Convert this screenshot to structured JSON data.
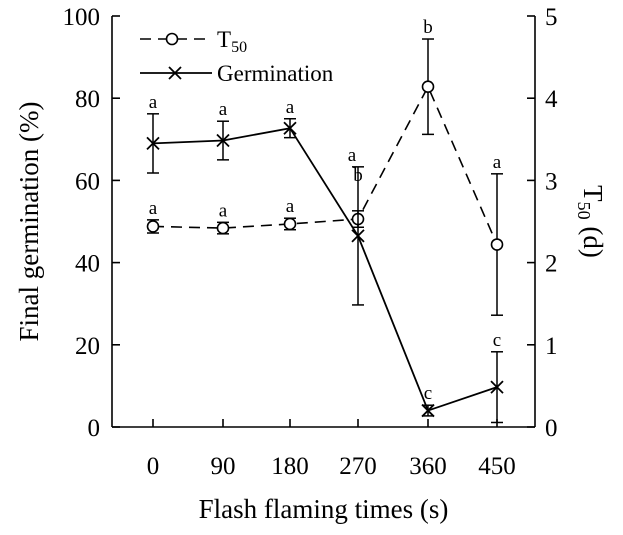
{
  "chart_data": {
    "type": "line",
    "xlabel": "Flash flaming times (s)",
    "ylabel_left": "Final germination (%)",
    "ylabel_right_main": "T",
    "ylabel_right_sub": "50",
    "ylabel_right_unit": " (d)",
    "x": [
      "0",
      "90",
      "180",
      "270",
      "360",
      "450"
    ],
    "ylim_left": [
      0,
      100
    ],
    "ylim_right": [
      0,
      5
    ],
    "yticks_left": [
      "0",
      "20",
      "40",
      "60",
      "80",
      "100"
    ],
    "yticks_right": [
      "0",
      "1",
      "2",
      "3",
      "4",
      "5"
    ],
    "grid": false,
    "legend_position": "top-left",
    "series": [
      {
        "name_main": "T",
        "name_sub": "50",
        "axis": "right",
        "line_style": "dashed",
        "marker": "circle",
        "values": [
          2.44,
          2.42,
          2.47,
          2.53,
          4.14,
          2.22
        ],
        "errors": [
          0.08,
          0.07,
          0.07,
          0.1,
          0.58,
          0.86
        ],
        "labels": [
          "a",
          "a",
          "a",
          "b",
          "b",
          "a"
        ]
      },
      {
        "name": "Germination",
        "axis": "left",
        "line_style": "solid",
        "marker": "x",
        "values": [
          69,
          69.7,
          72.7,
          46.5,
          4,
          9.7
        ],
        "errors": [
          7.2,
          4.7,
          2.3,
          16.8,
          1.3,
          8.6
        ],
        "labels": [
          "a",
          "a",
          "a",
          "a",
          "c",
          "c"
        ]
      }
    ]
  }
}
